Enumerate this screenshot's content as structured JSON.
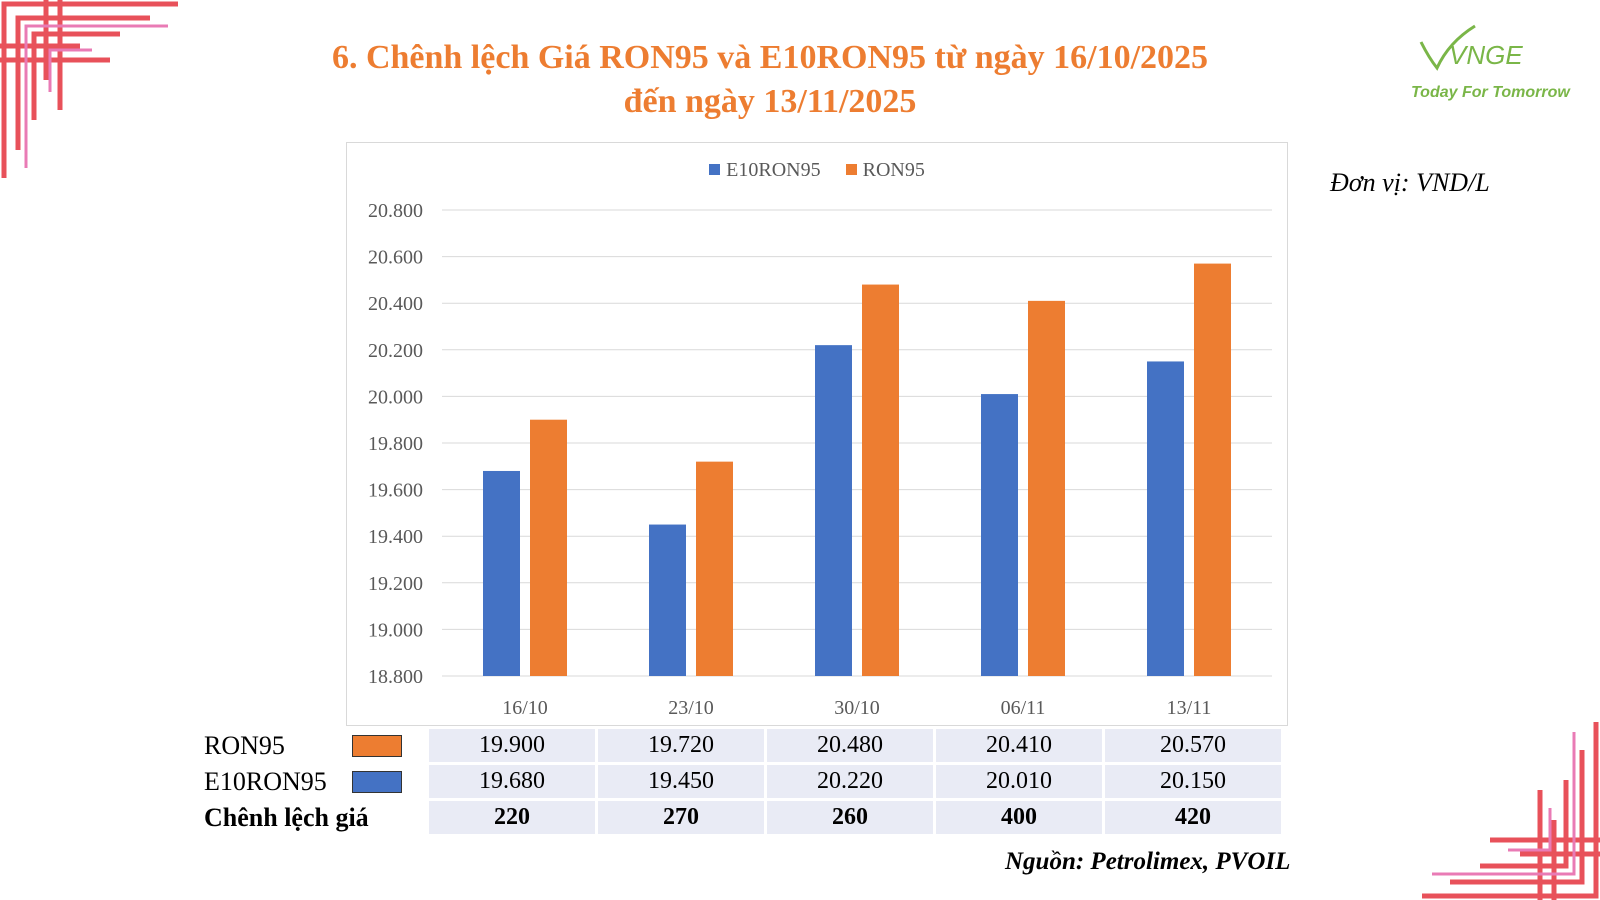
{
  "title": {
    "line1": "6. Chênh lệch Giá RON95 và E10RON95 từ ngày 16/10/2025",
    "line2": "đến ngày 13/11/2025"
  },
  "logo": {
    "name": "VNGE",
    "tagline": "Today For Tomorrow"
  },
  "unit": "Đơn vị: VND/L",
  "source": "Nguồn: Petrolimex, PVOIL",
  "colors": {
    "e10": "#4472C4",
    "ron95": "#ED7D31",
    "title": "#ED7D31",
    "logo": "#7AB648",
    "ornament": "#E8515A"
  },
  "chart_data": {
    "type": "bar",
    "categories": [
      "16/10",
      "23/10",
      "30/10",
      "06/11",
      "13/11"
    ],
    "series": [
      {
        "name": "E10RON95",
        "values": [
          19680,
          19450,
          20220,
          20010,
          20150
        ]
      },
      {
        "name": "RON95",
        "values": [
          19900,
          19720,
          20480,
          20410,
          20570
        ]
      }
    ],
    "ylim": [
      18800,
      20800
    ],
    "yticks": [
      "20.800",
      "20.600",
      "20.400",
      "20.200",
      "20.000",
      "19.800",
      "19.600",
      "19.400",
      "19.200",
      "19.000",
      "18.800"
    ],
    "grid": true,
    "legend_position": "top"
  },
  "table": {
    "rows": [
      {
        "label": "RON95",
        "values": [
          "19.900",
          "19.720",
          "20.480",
          "20.410",
          "20.570"
        ]
      },
      {
        "label": "E10RON95",
        "values": [
          "19.680",
          "19.450",
          "20.220",
          "20.010",
          "20.150"
        ]
      },
      {
        "label": "Chênh lệch giá",
        "values": [
          "220",
          "270",
          "260",
          "400",
          "420"
        ]
      }
    ]
  }
}
